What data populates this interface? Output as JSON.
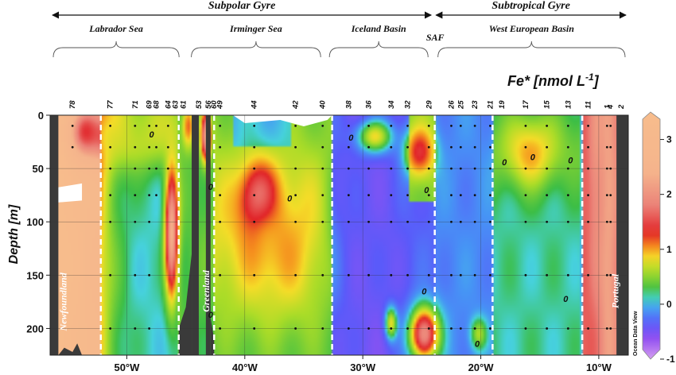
{
  "chart_data": {
    "type": "heatmap",
    "colorbar_title": "Fe* [nmol L",
    "colorbar_title_sup": "-1",
    "colorbar_title_end": "]",
    "ylabel": "Depth [m]",
    "xlim": [
      -56.5,
      -7.5
    ],
    "ylim": [
      0,
      225
    ],
    "clim": [
      -1,
      3.5
    ],
    "x_ticks": [
      {
        "value": -50,
        "label": "50°W"
      },
      {
        "value": -40,
        "label": "40°W"
      },
      {
        "value": -30,
        "label": "30°W"
      },
      {
        "value": -20,
        "label": "20°W"
      },
      {
        "value": -10,
        "label": "10°W"
      }
    ],
    "y_ticks": [
      {
        "value": 0,
        "label": "0"
      },
      {
        "value": 50,
        "label": "50"
      },
      {
        "value": 100,
        "label": "100"
      },
      {
        "value": 150,
        "label": "150"
      },
      {
        "value": 200,
        "label": "200"
      }
    ],
    "colorbar_ticks": [
      {
        "value": 3,
        "label": "3"
      },
      {
        "value": 2,
        "label": "2"
      },
      {
        "value": 1,
        "label": "1"
      },
      {
        "value": 0,
        "label": "0"
      },
      {
        "value": -1,
        "label": "-1"
      }
    ],
    "gyres": [
      {
        "name": "Subpolar Gyre",
        "from": -56.5,
        "to": -24
      },
      {
        "name": "Subtropical Gyre",
        "from": -24,
        "to": -7.5
      }
    ],
    "front_label": {
      "text": "SAF",
      "x": -24
    },
    "regions": [
      {
        "name": "Labrador Sea",
        "from": -56.5,
        "to": -45.3
      },
      {
        "name": "Irminger Sea",
        "from": -44.8,
        "to": -33.3
      },
      {
        "name": "Iceland Basin",
        "from": -33.1,
        "to": -24.2
      },
      {
        "name": "West European Basin",
        "from": -23.9,
        "to": -7.5
      }
    ],
    "section_boundaries": [
      -52.2,
      -45.6,
      -42.6,
      -32.6,
      -23.9,
      -19,
      -11.4
    ],
    "stations": [
      {
        "label": "78",
        "x": -54.6
      },
      {
        "label": "77",
        "x": -51.4
      },
      {
        "label": "71",
        "x": -49.3
      },
      {
        "label": "69",
        "x": -48.1
      },
      {
        "label": "68",
        "x": -47.5
      },
      {
        "label": "64",
        "x": -46.5
      },
      {
        "label": "63",
        "x": -45.9
      },
      {
        "label": "61",
        "x": -45.2
      },
      {
        "label": "53",
        "x": -43.9
      },
      {
        "label": "56",
        "x": -43.1
      },
      {
        "label": "60",
        "x": -42.6
      },
      {
        "label": "49",
        "x": -42.1
      },
      {
        "label": "44",
        "x": -39.2
      },
      {
        "label": "42",
        "x": -35.7
      },
      {
        "label": "40",
        "x": -33.4
      },
      {
        "label": "38",
        "x": -31.2
      },
      {
        "label": "36",
        "x": -29.5
      },
      {
        "label": "34",
        "x": -27.6
      },
      {
        "label": "32",
        "x": -26.2
      },
      {
        "label": "29",
        "x": -24.4
      },
      {
        "label": "26",
        "x": -22.5
      },
      {
        "label": "25",
        "x": -21.7
      },
      {
        "label": "23",
        "x": -20.5
      },
      {
        "label": "21",
        "x": -19.2
      },
      {
        "label": "19",
        "x": -18.2
      },
      {
        "label": "17",
        "x": -16.2
      },
      {
        "label": "15",
        "x": -14.4
      },
      {
        "label": "13",
        "x": -12.6
      },
      {
        "label": "11",
        "x": -10.9
      },
      {
        "label": "1",
        "x": -9.3
      },
      {
        "label": "4",
        "x": -9.0
      },
      {
        "label": "2",
        "x": -8.1
      }
    ],
    "land_labels": [
      {
        "text": "Newfoundland",
        "x": -55.4,
        "depth": 175
      },
      {
        "text": "Greenland",
        "x": -43.3,
        "depth": 165
      },
      {
        "text": "Portugal",
        "x": -8.6,
        "depth": 165
      }
    ],
    "contour_labels": [
      {
        "text": "0",
        "x": -47.9,
        "depth": 21
      },
      {
        "text": "0",
        "x": -42.9,
        "depth": 70
      },
      {
        "text": "0",
        "x": -36.2,
        "depth": 81
      },
      {
        "text": "0",
        "x": -31.0,
        "depth": 24
      },
      {
        "text": "0",
        "x": -24.6,
        "depth": 73
      },
      {
        "text": "0",
        "x": -24.8,
        "depth": 168
      },
      {
        "text": "0",
        "x": -18.0,
        "depth": 47
      },
      {
        "text": "0",
        "x": -15.6,
        "depth": 42
      },
      {
        "text": "0",
        "x": -12.4,
        "depth": 45
      },
      {
        "text": "0",
        "x": -12.8,
        "depth": 175
      },
      {
        "text": "0",
        "x": -20.3,
        "depth": 217
      },
      {
        "text": "0",
        "x": -42.9,
        "depth": 190
      }
    ],
    "samples": [
      {
        "x": -54.6,
        "depths": [
          10,
          30
        ]
      },
      {
        "x": -51.4,
        "depths": [
          10,
          30,
          50,
          75,
          100,
          150,
          200
        ]
      },
      {
        "x": -49.3,
        "depths": [
          10,
          30,
          50,
          75,
          100,
          150,
          200
        ]
      },
      {
        "x": -48.1,
        "depths": [
          10,
          30,
          50,
          75,
          100,
          150,
          200
        ]
      },
      {
        "x": -47.5,
        "depths": [
          10,
          30,
          50,
          75
        ]
      },
      {
        "x": -46.5,
        "depths": [
          10,
          30,
          50
        ]
      },
      {
        "x": -42.1,
        "depths": [
          10,
          30,
          50,
          75,
          100,
          150,
          200
        ]
      },
      {
        "x": -39.2,
        "depths": [
          10,
          30,
          50,
          75,
          100,
          150,
          200
        ]
      },
      {
        "x": -35.7,
        "depths": [
          10,
          30,
          50,
          75,
          100,
          150,
          200
        ]
      },
      {
        "x": -33.4,
        "depths": [
          10,
          30,
          50,
          75,
          100,
          150,
          200
        ]
      },
      {
        "x": -31.2,
        "depths": [
          10,
          30,
          50,
          75,
          100,
          150,
          200
        ]
      },
      {
        "x": -29.5,
        "depths": [
          10,
          30,
          50,
          75,
          100,
          150,
          200
        ]
      },
      {
        "x": -27.6,
        "depths": [
          10,
          30,
          50,
          75,
          100,
          150,
          200
        ]
      },
      {
        "x": -26.2,
        "depths": [
          10,
          30,
          50,
          75,
          100,
          150,
          200
        ]
      },
      {
        "x": -24.4,
        "depths": [
          10,
          30,
          50,
          75,
          100,
          150,
          200
        ]
      },
      {
        "x": -22.5,
        "depths": [
          10,
          30,
          50,
          75,
          100,
          150,
          200
        ]
      },
      {
        "x": -21.7,
        "depths": [
          10,
          30,
          50,
          75,
          100,
          150,
          200
        ]
      },
      {
        "x": -20.5,
        "depths": [
          10,
          30,
          50,
          75,
          100,
          150,
          200
        ]
      },
      {
        "x": -19.2,
        "depths": [
          10,
          30,
          50,
          75,
          100,
          150,
          200
        ]
      },
      {
        "x": -16.2,
        "depths": [
          10,
          30,
          50,
          75,
          100,
          150,
          200
        ]
      },
      {
        "x": -14.4,
        "depths": [
          10,
          30,
          50,
          75,
          100,
          150,
          200
        ]
      },
      {
        "x": -12.6,
        "depths": [
          10,
          30,
          50,
          75,
          100,
          150,
          200
        ]
      },
      {
        "x": -10.9,
        "depths": [
          10,
          30,
          50,
          75,
          100,
          150,
          200
        ]
      },
      {
        "x": -9.3,
        "depths": [
          10,
          30,
          50,
          75,
          100,
          150,
          200
        ]
      },
      {
        "x": -9.0,
        "depths": [
          10,
          30,
          50,
          75,
          100,
          150,
          200
        ]
      }
    ],
    "anomalies": [
      {
        "x": -56.0,
        "depth": 80,
        "value": 3.5,
        "sx": 3.2,
        "sy": 600
      },
      {
        "x": -53.6,
        "depth": 15,
        "value": 1.6,
        "sx": 1.2,
        "sy": 22
      },
      {
        "x": -46.2,
        "depth": 110,
        "value": 2.4,
        "sx": 0.55,
        "sy": 60
      },
      {
        "x": -43.3,
        "depth": 20,
        "value": 2.3,
        "sx": 0.4,
        "sy": 22
      },
      {
        "x": -38.8,
        "depth": 85,
        "value": 2.6,
        "sx": 1.4,
        "sy": 32
      },
      {
        "x": -37.5,
        "depth": 120,
        "value": 1.0,
        "sx": 4.0,
        "sy": 60
      },
      {
        "x": -49.5,
        "depth": 20,
        "value": 0.7,
        "sx": 3.5,
        "sy": 25
      },
      {
        "x": -25.2,
        "depth": 35,
        "value": 1.4,
        "sx": 1.2,
        "sy": 22
      },
      {
        "x": -24.8,
        "depth": 205,
        "value": 2.0,
        "sx": 1.2,
        "sy": 25
      },
      {
        "x": -20.2,
        "depth": 205,
        "value": 0.6,
        "sx": 0.7,
        "sy": 15
      },
      {
        "x": -15.8,
        "depth": 35,
        "value": 1.0,
        "sx": 2.0,
        "sy": 30
      },
      {
        "x": -10.2,
        "depth": 40,
        "value": 2.0,
        "sx": 0.6,
        "sy": 110
      },
      {
        "x": -9.2,
        "depth": 130,
        "value": 2.2,
        "sx": 0.8,
        "sy": 600
      },
      {
        "x": -30.0,
        "depth": 110,
        "value": -0.4,
        "sx": 2.5,
        "sy": 80
      },
      {
        "x": -27.6,
        "depth": 195,
        "value": 0.8,
        "sx": 0.5,
        "sy": 15
      },
      {
        "x": -44.8,
        "depth": 10,
        "value": 1.2,
        "sx": 0.5,
        "sy": 20
      },
      {
        "x": -29.0,
        "depth": 20,
        "value": 0.8,
        "sx": 1.5,
        "sy": 15
      }
    ],
    "land_segments": [
      {
        "from": -56.5,
        "to": -55.8
      },
      {
        "from": -44.5,
        "to": -43.9
      },
      {
        "from": -43.3,
        "to": -42.9
      },
      {
        "from": -8.5,
        "to": -7.5
      }
    ],
    "watermark": "Ocean Data View"
  }
}
